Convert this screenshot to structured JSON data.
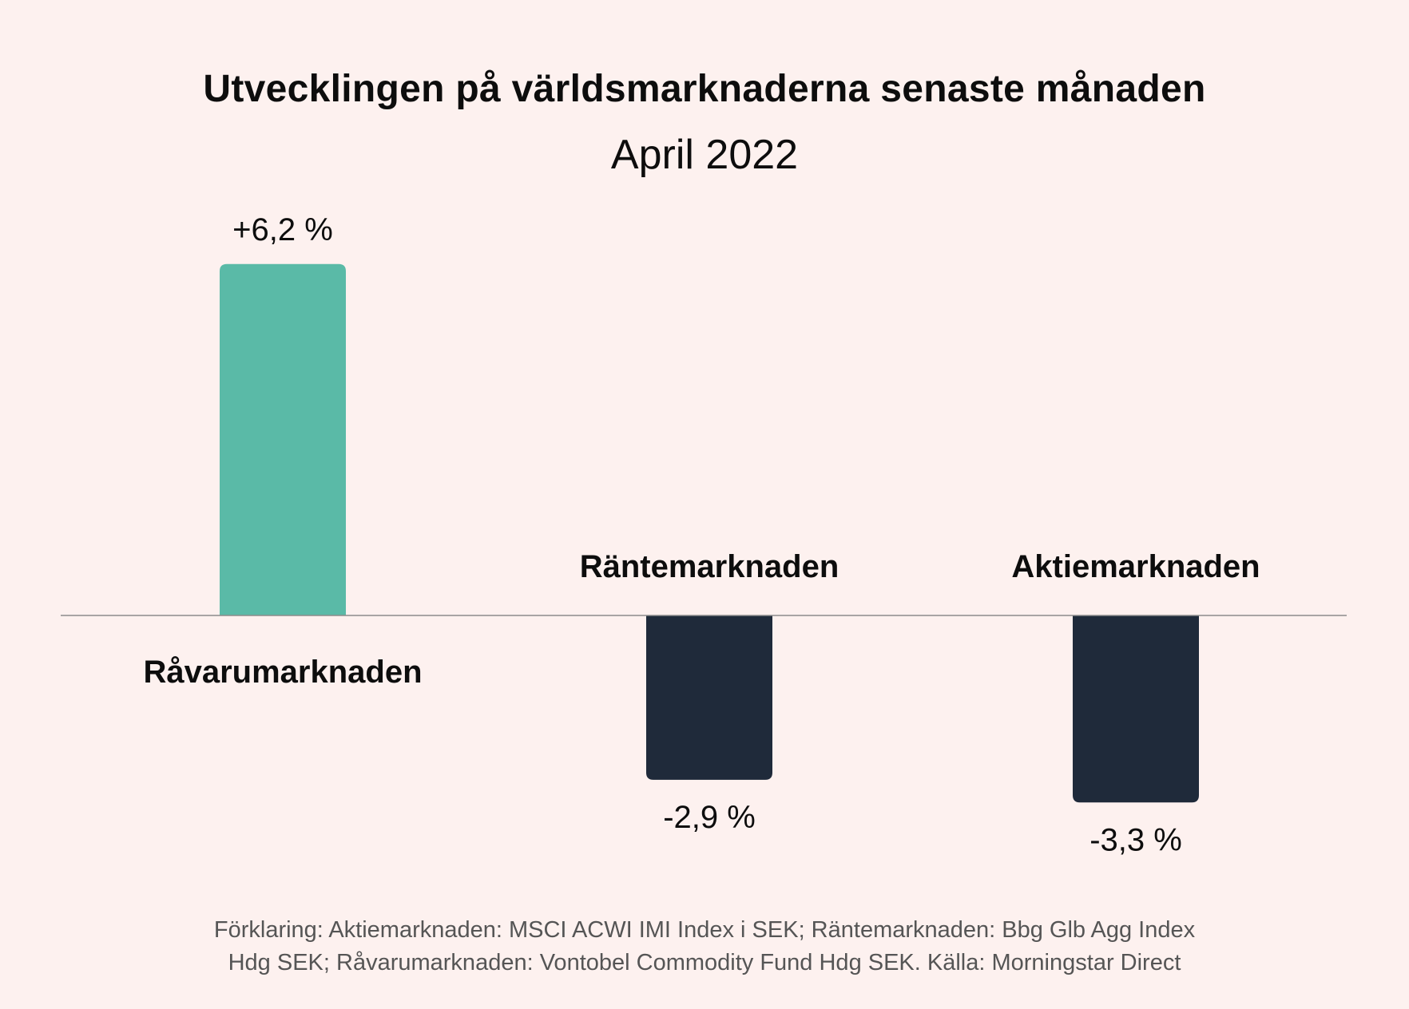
{
  "chart_data": {
    "type": "bar",
    "title": "Utvecklingen på världsmarknaderna senaste månaden",
    "subtitle": "April 2022",
    "categories": [
      "Råvarumarknaden",
      "Räntemarknaden",
      "Aktiemarknaden"
    ],
    "values": [
      6.2,
      -2.9,
      -3.3
    ],
    "value_labels": [
      "+6,2 %",
      "-2,9 %",
      "-3,3 %"
    ],
    "colors": [
      "#5abaa7",
      "#1f2a3a",
      "#1f2a3a"
    ],
    "ylim": [
      -6.2,
      6.2
    ],
    "grid": false,
    "legend": "none"
  },
  "footnote": {
    "line1": "Förklaring: Aktiemarknaden: MSCI ACWI IMI Index i SEK; Räntemarknaden: Bbg Glb Agg Index",
    "line2": "Hdg SEK; Råvarumarknaden: Vontobel Commodity Fund Hdg SEK. Källa: Morningstar Direct"
  }
}
